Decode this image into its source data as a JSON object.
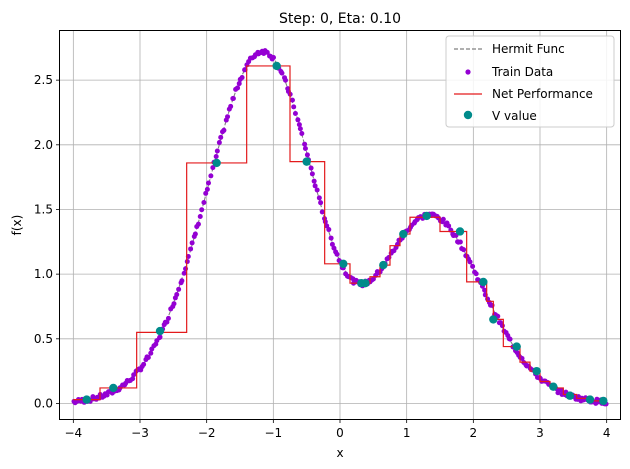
{
  "chart_data": {
    "type": "line",
    "title": "Step: 0, Eta: 0.10",
    "xlabel": "x",
    "ylabel": "f(x)",
    "xlim": [
      -4.2,
      4.2
    ],
    "ylim": [
      -0.12,
      2.88
    ],
    "xticks": [
      -4,
      -3,
      -2,
      -1,
      0,
      1,
      2,
      3,
      4
    ],
    "yticks": [
      0.0,
      0.5,
      1.0,
      1.5,
      2.0,
      2.5
    ],
    "xtick_labels": [
      "−4",
      "−3",
      "−2",
      "−1",
      "0",
      "1",
      "2",
      "3",
      "4"
    ],
    "ytick_labels": [
      "0.0",
      "0.5",
      "1.0",
      "1.5",
      "2.0",
      "2.5"
    ],
    "grid": true,
    "legend_position": "top-right",
    "legend": {
      "hermit": "Hermit Func",
      "train": "Train Data",
      "net": "Net Performance",
      "v": "V value"
    },
    "colors": {
      "hermit": "#808080",
      "train": "#9400d3",
      "net": "#e31a1c",
      "v": "#008b8b",
      "grid": "#b0b0b0"
    },
    "hermit_function": "1.1*(1 - x + 2*x^2)*exp(-x^2/2)",
    "x_range": [
      -4,
      4
    ],
    "net_performance_steps": [
      [
        -4.0,
        0.03
      ],
      [
        -3.6,
        0.03
      ],
      [
        -3.6,
        0.12
      ],
      [
        -3.05,
        0.12
      ],
      [
        -3.05,
        0.55
      ],
      [
        -2.3,
        0.55
      ],
      [
        -2.3,
        1.86
      ],
      [
        -1.4,
        1.86
      ],
      [
        -1.4,
        2.61
      ],
      [
        -0.75,
        2.61
      ],
      [
        -0.75,
        1.87
      ],
      [
        -0.23,
        1.87
      ],
      [
        -0.23,
        1.08
      ],
      [
        0.15,
        1.08
      ],
      [
        0.15,
        0.93
      ],
      [
        0.45,
        0.93
      ],
      [
        0.45,
        0.98
      ],
      [
        0.6,
        0.98
      ],
      [
        0.6,
        1.07
      ],
      [
        0.75,
        1.07
      ],
      [
        0.75,
        1.22
      ],
      [
        0.9,
        1.22
      ],
      [
        0.9,
        1.31
      ],
      [
        1.05,
        1.31
      ],
      [
        1.05,
        1.44
      ],
      [
        1.5,
        1.44
      ],
      [
        1.5,
        1.33
      ],
      [
        1.9,
        1.33
      ],
      [
        1.9,
        0.94
      ],
      [
        2.2,
        0.94
      ],
      [
        2.2,
        0.79
      ],
      [
        2.3,
        0.79
      ],
      [
        2.3,
        0.65
      ],
      [
        2.45,
        0.65
      ],
      [
        2.45,
        0.44
      ],
      [
        2.7,
        0.44
      ],
      [
        2.7,
        0.32
      ],
      [
        2.85,
        0.32
      ],
      [
        2.85,
        0.25
      ],
      [
        3.0,
        0.25
      ],
      [
        3.0,
        0.17
      ],
      [
        3.15,
        0.17
      ],
      [
        3.15,
        0.12
      ],
      [
        3.35,
        0.12
      ],
      [
        3.35,
        0.07
      ],
      [
        3.55,
        0.07
      ],
      [
        3.55,
        0.04
      ],
      [
        3.75,
        0.04
      ],
      [
        3.75,
        0.02
      ],
      [
        4.0,
        0.02
      ]
    ],
    "v_values": [
      [
        -3.8,
        0.03
      ],
      [
        -3.4,
        0.12
      ],
      [
        -2.7,
        0.56
      ],
      [
        -1.85,
        1.86
      ],
      [
        -0.95,
        2.61
      ],
      [
        -0.5,
        1.87
      ],
      [
        0.05,
        1.08
      ],
      [
        0.32,
        0.93
      ],
      [
        0.38,
        0.93
      ],
      [
        0.65,
        1.07
      ],
      [
        0.95,
        1.31
      ],
      [
        1.3,
        1.45
      ],
      [
        1.8,
        1.33
      ],
      [
        2.15,
        0.94
      ],
      [
        2.3,
        0.65
      ],
      [
        2.65,
        0.44
      ],
      [
        2.95,
        0.25
      ],
      [
        3.2,
        0.13
      ],
      [
        3.45,
        0.06
      ],
      [
        3.75,
        0.03
      ],
      [
        3.95,
        0.02
      ]
    ],
    "train_points": 320
  }
}
